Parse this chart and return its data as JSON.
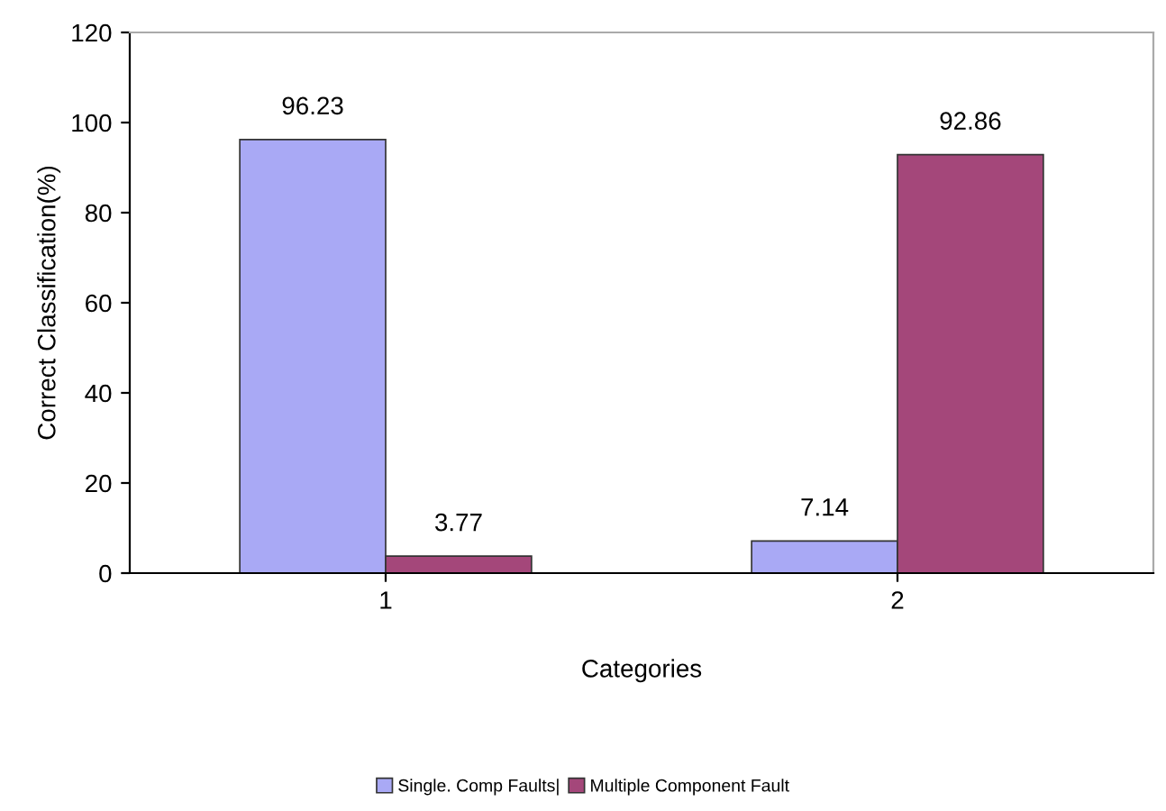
{
  "chart_data": {
    "type": "bar",
    "xlabel": "Categories",
    "ylabel": "Correct Classification(%)",
    "categories": [
      "1",
      "2"
    ],
    "series": [
      {
        "name": "Single. Comp Faults|",
        "color": "#a9a9f5",
        "values": [
          96.23,
          7.14
        ]
      },
      {
        "name": "Multiple Component Fault",
        "color": "#a4477a",
        "values": [
          3.77,
          92.86
        ]
      }
    ],
    "ylim": [
      0,
      120
    ],
    "yticks": [
      0,
      20,
      40,
      60,
      80,
      100,
      120
    ],
    "grid": false,
    "legend": "bottom",
    "data_labels": true
  }
}
